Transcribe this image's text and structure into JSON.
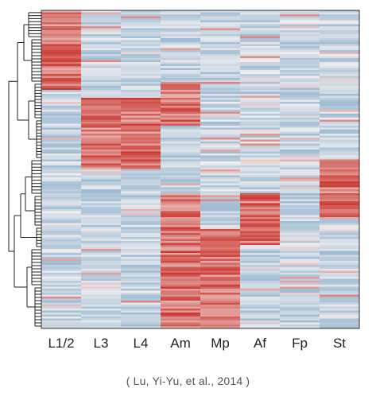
{
  "chart_data": {
    "type": "heatmap",
    "columns": [
      "L1/2",
      "L3",
      "L4",
      "Am",
      "Mp",
      "Af",
      "Fp",
      "St"
    ],
    "row_count": 160,
    "color_scale": {
      "low": "#8fb3cf",
      "mid": "#f3eff0",
      "high": "#cc3a32"
    },
    "blocks": [
      {
        "rows": [
          0,
          40
        ],
        "high_columns": [
          "L1/2"
        ]
      },
      {
        "rows": [
          36,
          58
        ],
        "high_columns": [
          "Am"
        ]
      },
      {
        "rows": [
          44,
          80
        ],
        "high_columns": [
          "L3",
          "L4"
        ]
      },
      {
        "rows": [
          75,
          105
        ],
        "high_columns": [
          "St"
        ]
      },
      {
        "rows": [
          92,
          118
        ],
        "high_columns": [
          "Am",
          "Af"
        ]
      },
      {
        "rows": [
          110,
          160
        ],
        "high_columns": [
          "Am",
          "Mp"
        ]
      }
    ],
    "dendrogram": "left",
    "caption": "( Lu, Yi-Yu, et al., 2014 )"
  }
}
